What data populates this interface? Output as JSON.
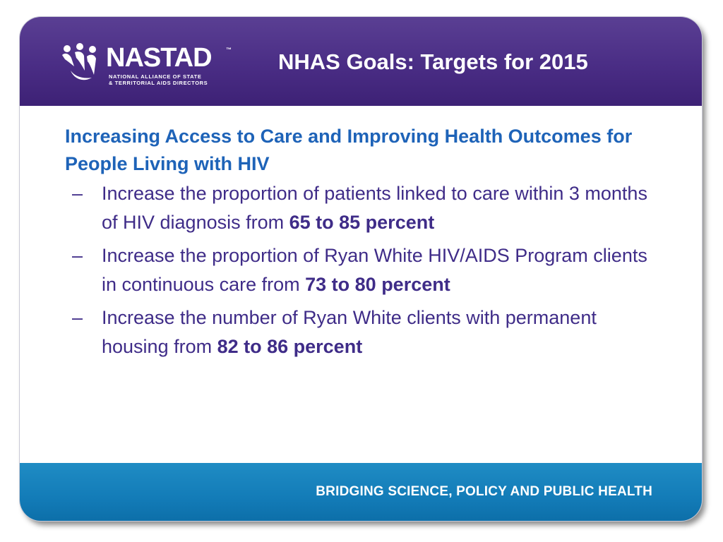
{
  "header": {
    "logo_word": "NASTAD",
    "logo_tm": "™",
    "logo_sub_line1": "NATIONAL ALLIANCE OF STATE",
    "logo_sub_line2": "& TERRITORIAL AIDS DIRECTORS",
    "title": "NHAS Goals: Targets for 2015"
  },
  "content": {
    "heading": "Increasing Access to Care and Improving Health Outcomes for People Living with HIV",
    "bullets": [
      {
        "dash": "–",
        "text": "Increase the proportion of patients linked to care within 3 months of HIV diagnosis from ",
        "emphasis": "65 to 85 percent"
      },
      {
        "dash": "–",
        "text": "Increase the proportion of Ryan White HIV/AIDS Program clients in continuous care from ",
        "emphasis": "73 to 80 percent"
      },
      {
        "dash": "–",
        "text": "Increase the number of Ryan White clients with permanent housing from ",
        "emphasis": "82 to 86 percent"
      }
    ]
  },
  "footer": {
    "tagline": "BRIDGING SCIENCE, POLICY AND PUBLIC HEALTH"
  },
  "colors": {
    "header_purple": "#4a2d85",
    "heading_blue": "#1e63b8",
    "body_purple": "#3f2c88",
    "footer_blue": "#137cb8"
  }
}
